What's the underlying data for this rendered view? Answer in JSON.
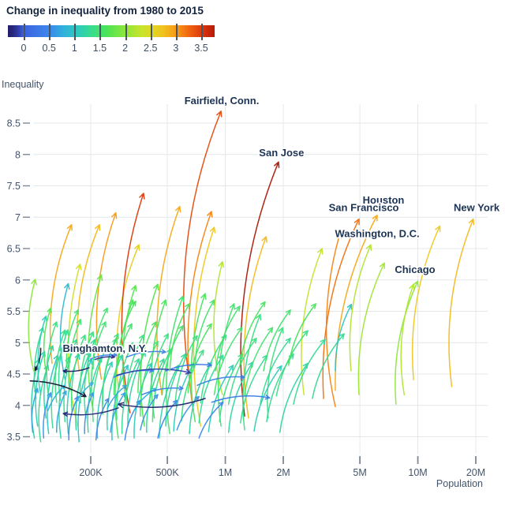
{
  "header": {
    "title": "Change in inequality from 1980 to 2015"
  },
  "legend": {
    "min": -0.31,
    "max": 3.76,
    "ticks": [
      0,
      0.5,
      1,
      1.5,
      2,
      2.5,
      3,
      3.5
    ],
    "colormap": [
      [
        -0.7,
        "#0c0a24"
      ],
      [
        -0.4,
        "#1c1750"
      ],
      [
        -0.15,
        "#2b2d8f"
      ],
      [
        0,
        "#3b63e0"
      ],
      [
        0.5,
        "#3d87ea"
      ],
      [
        0.8,
        "#30b2dc"
      ],
      [
        1.05,
        "#2dc9bf"
      ],
      [
        1.35,
        "#38dd8a"
      ],
      [
        1.65,
        "#4de455"
      ],
      [
        2.0,
        "#8ee73a"
      ],
      [
        2.35,
        "#cde32b"
      ],
      [
        2.7,
        "#efc91f"
      ],
      [
        3.0,
        "#f89b17"
      ],
      [
        3.3,
        "#ee5c0f"
      ],
      [
        3.6,
        "#d22a0a"
      ],
      [
        3.85,
        "#a21408"
      ],
      [
        4.2,
        "#8c1005"
      ]
    ]
  },
  "axes": {
    "y": {
      "title": "Inequality",
      "ticks": [
        3.5,
        4,
        4.5,
        5,
        5.5,
        6,
        6.5,
        7,
        7.5,
        8,
        8.5
      ]
    },
    "x": {
      "title": "Population",
      "scale": "log",
      "ticks": [
        {
          "v": 200000,
          "label": "200K"
        },
        {
          "v": 500000,
          "label": "500K"
        },
        {
          "v": 1000000,
          "label": "1M"
        },
        {
          "v": 2000000,
          "label": "2M"
        },
        {
          "v": 5000000,
          "label": "5M"
        },
        {
          "v": 10000000,
          "label": "10M"
        },
        {
          "v": 20000000,
          "label": "20M"
        }
      ]
    }
  },
  "chart_data": {
    "type": "arrow-connected-scatter",
    "title": "Change in inequality from 1980 to 2015",
    "x": "population (log scale)",
    "y": "inequality",
    "color": "change in inequality, 1980 to 2015",
    "arrow_format": [
      "pop_1980",
      "inequality_1980",
      "pop_2015",
      "inequality_2015",
      "change"
    ],
    "labeled_cities": [
      {
        "name": "Fairfield, Conn.",
        "pop": 958000,
        "ineq": 8.85
      },
      {
        "name": "San Jose",
        "pop": 1960000,
        "ineq": 8.02
      },
      {
        "name": "Houston",
        "pop": 6630000,
        "ineq": 7.27
      },
      {
        "name": "San Francisco",
        "pop": 5240000,
        "ineq": 7.15
      },
      {
        "name": "Washington, D.C.",
        "pop": 6150000,
        "ineq": 6.73
      },
      {
        "name": "New York",
        "pop": 20200000,
        "ineq": 7.15
      },
      {
        "name": "Chicago",
        "pop": 9670000,
        "ineq": 6.16
      },
      {
        "name": "Binghamton, N.Y.",
        "pop": 237000,
        "ineq": 4.9
      }
    ],
    "arrows": [
      [
        126000,
        4.67,
        159000,
        6.88,
        2.9
      ],
      [
        174000,
        4.55,
        222000,
        6.88,
        2.8
      ],
      [
        227000,
        4.42,
        270000,
        7.07,
        3.0
      ],
      [
        278000,
        4.3,
        356000,
        6.56,
        2.6
      ],
      [
        320000,
        3.88,
        376000,
        7.38,
        3.5
      ],
      [
        468000,
        4.17,
        580000,
        7.17,
        2.9
      ],
      [
        682000,
        3.92,
        847000,
        7.09,
        3.1
      ],
      [
        640000,
        4.55,
        950000,
        8.69,
        3.4
      ],
      [
        745000,
        3.67,
        876000,
        6.84,
        2.7
      ],
      [
        1320000,
        3.8,
        1630000,
        6.69,
        2.8
      ],
      [
        1260000,
        3.83,
        1890000,
        7.88,
        3.8
      ],
      [
        3730000,
        3.98,
        3950000,
        6.75,
        3.1
      ],
      [
        3240000,
        4.11,
        4950000,
        6.97,
        3.2
      ],
      [
        3730000,
        4.24,
        6150000,
        7.03,
        2.9
      ],
      [
        15000000,
        4.3,
        19400000,
        6.97,
        2.8
      ],
      [
        9500000,
        4.41,
        13000000,
        6.86,
        2.7
      ],
      [
        7700000,
        4.02,
        10000000,
        5.98,
        2.0
      ],
      [
        8500000,
        4.17,
        9500000,
        5.93,
        2.2
      ],
      [
        4500000,
        4.55,
        5700000,
        6.56,
        2.2
      ],
      [
        4950000,
        4.17,
        6700000,
        6.27,
        2.1
      ],
      [
        2560000,
        4.17,
        3180000,
        6.5,
        2.3
      ],
      [
        101000,
        4.55,
        103000,
        6.01,
        2.0
      ],
      [
        171000,
        3.67,
        176000,
        6.25,
        2.4
      ],
      [
        147000,
        4.42,
        153000,
        5.94,
        0.9
      ],
      [
        278000,
        3.48,
        331000,
        5.68,
        1.6
      ],
      [
        380000,
        3.67,
        446000,
        5.93,
        1.7
      ],
      [
        515000,
        3.55,
        603000,
        5.74,
        1.5
      ],
      [
        697000,
        3.74,
        786000,
        5.78,
        1.6
      ],
      [
        950000,
        3.67,
        1110000,
        5.62,
        1.5
      ],
      [
        1260000,
        3.61,
        1520000,
        5.45,
        1.4
      ],
      [
        1670000,
        3.8,
        1990000,
        5.24,
        1.4
      ],
      [
        966000,
        4.17,
        966000,
        6.29,
        2.2
      ],
      [
        206000,
        3.92,
        227000,
        6.08,
        1.8
      ],
      [
        306000,
        4.05,
        342000,
        5.91,
        1.7
      ],
      [
        428000,
        3.8,
        490000,
        5.68,
        1.6
      ],
      [
        102000,
        3.48,
        108000,
        4.74,
        1.2
      ],
      [
        106000,
        3.67,
        115000,
        4.86,
        1.1
      ],
      [
        110000,
        3.42,
        120000,
        4.64,
        1.3
      ],
      [
        117000,
        3.8,
        127000,
        4.95,
        1.2
      ],
      [
        121000,
        3.55,
        135000,
        4.8,
        1.0
      ],
      [
        127000,
        3.64,
        144000,
        4.93,
        1.3
      ],
      [
        133000,
        4.05,
        147000,
        5.2,
        1.4
      ],
      [
        140000,
        3.48,
        155000,
        4.77,
        1.2
      ],
      [
        147000,
        3.74,
        169000,
        5.05,
        1.3
      ],
      [
        153000,
        3.55,
        174000,
        4.82,
        1.1
      ],
      [
        160000,
        3.89,
        187000,
        5.12,
        1.4
      ],
      [
        168000,
        3.61,
        199000,
        4.86,
        1.2
      ],
      [
        174000,
        3.42,
        202000,
        4.74,
        1.0
      ],
      [
        189000,
        3.8,
        210000,
        5.05,
        1.3
      ],
      [
        194000,
        3.57,
        227000,
        4.77,
        1.2
      ],
      [
        206000,
        3.74,
        241000,
        4.93,
        1.4
      ],
      [
        217000,
        3.48,
        258000,
        4.69,
        1.1
      ],
      [
        231000,
        3.86,
        273000,
        5.07,
        1.5
      ],
      [
        244000,
        3.61,
        291000,
        4.8,
        1.2
      ],
      [
        258000,
        3.45,
        312000,
        4.64,
        1.0
      ],
      [
        273000,
        3.77,
        331000,
        5.0,
        1.4
      ],
      [
        291000,
        3.55,
        356000,
        4.74,
        1.3
      ],
      [
        312000,
        3.67,
        384000,
        4.86,
        1.2
      ],
      [
        336000,
        3.48,
        414000,
        4.67,
        1.1
      ],
      [
        362000,
        3.83,
        446000,
        5.02,
        1.5
      ],
      [
        390000,
        3.57,
        480000,
        4.74,
        1.3
      ],
      [
        419000,
        3.74,
        524000,
        4.9,
        1.4
      ],
      [
        454000,
        3.48,
        572000,
        4.64,
        1.2
      ],
      [
        490000,
        3.67,
        620000,
        4.82,
        1.3
      ],
      [
        539000,
        3.59,
        687000,
        4.67,
        1.1
      ],
      [
        592000,
        3.75,
        770000,
        4.88,
        1.4
      ],
      [
        651000,
        3.55,
        847000,
        4.69,
        1.2
      ],
      [
        730000,
        3.72,
        974000,
        4.8,
        1.3
      ],
      [
        818000,
        3.58,
        1100000,
        4.64,
        1.1
      ],
      [
        934000,
        3.74,
        1230000,
        4.82,
        1.4
      ],
      [
        1040000,
        3.57,
        1390000,
        4.69,
        1.2
      ],
      [
        1200000,
        3.72,
        1650000,
        4.8,
        1.3
      ],
      [
        1410000,
        3.59,
        1960000,
        4.63,
        1.1
      ],
      [
        1640000,
        3.74,
        2260000,
        4.82,
        1.3
      ],
      [
        1920000,
        3.57,
        2680000,
        4.67,
        1.2
      ],
      [
        104000,
        4.11,
        113000,
        5.24,
        1.3
      ],
      [
        120000,
        4.2,
        133000,
        5.33,
        1.4
      ],
      [
        139000,
        4.08,
        152000,
        5.2,
        1.3
      ],
      [
        155000,
        4.23,
        177000,
        5.37,
        1.5
      ],
      [
        177000,
        4.04,
        206000,
        5.17,
        1.4
      ],
      [
        202000,
        4.2,
        239000,
        5.33,
        1.5
      ],
      [
        231000,
        4.02,
        278000,
        5.14,
        1.4
      ],
      [
        264000,
        4.17,
        327000,
        5.3,
        1.5
      ],
      [
        306000,
        4.02,
        376000,
        5.12,
        1.4
      ],
      [
        352000,
        4.2,
        437000,
        5.33,
        1.6
      ],
      [
        405000,
        4.04,
        505000,
        5.14,
        1.4
      ],
      [
        470000,
        4.17,
        603000,
        5.27,
        1.5
      ],
      [
        549000,
        4.02,
        715000,
        5.11,
        1.4
      ],
      [
        640000,
        4.2,
        847000,
        5.3,
        1.6
      ],
      [
        745000,
        4.04,
        1010000,
        5.12,
        1.4
      ],
      [
        876000,
        4.17,
        1220000,
        5.24,
        1.5
      ],
      [
        1040000,
        4.02,
        1450000,
        5.07,
        1.4
      ],
      [
        1260000,
        4.17,
        1760000,
        5.24,
        1.5
      ],
      [
        1520000,
        4.02,
        2180000,
        5.07,
        1.3
      ],
      [
        1840000,
        4.15,
        2680000,
        5.19,
        1.4
      ],
      [
        2260000,
        4.02,
        3300000,
        5.05,
        1.3
      ],
      [
        2830000,
        4.11,
        4140000,
        5.14,
        1.3
      ],
      [
        3730000,
        4.55,
        4520000,
        5.61,
        1.0
      ],
      [
        100000,
        3.57,
        106000,
        4.27,
        0.7
      ],
      [
        114000,
        3.48,
        124000,
        4.2,
        0.6
      ],
      [
        133000,
        3.57,
        149000,
        4.23,
        0.7
      ],
      [
        154000,
        3.45,
        172000,
        4.14,
        0.5
      ],
      [
        186000,
        3.55,
        206000,
        4.2,
        0.6
      ],
      [
        213000,
        3.45,
        248000,
        4.11,
        0.5
      ],
      [
        253000,
        3.57,
        301000,
        4.2,
        0.7
      ],
      [
        301000,
        3.45,
        362000,
        4.08,
        0.5
      ],
      [
        362000,
        3.61,
        446000,
        4.17,
        0.6
      ],
      [
        446000,
        3.48,
        561000,
        4.08,
        0.5
      ],
      [
        561000,
        3.61,
        730000,
        4.14,
        0.6
      ],
      [
        730000,
        3.48,
        974000,
        4.05,
        0.5
      ],
      [
        120000,
        3.92,
        147000,
        4.32,
        0.8
      ],
      [
        168000,
        4.05,
        206000,
        4.36,
        0.8
      ],
      [
        244000,
        3.95,
        306000,
        4.32,
        0.7
      ],
      [
        336000,
        3.92,
        437000,
        4.27,
        0.8
      ],
      [
        200000,
        4.74,
        273000,
        4.8,
        0.4
      ],
      [
        264000,
        4.45,
        423000,
        4.55,
        0.35
      ],
      [
        369000,
        4.17,
        603000,
        4.27,
        0.4
      ],
      [
        490000,
        4.55,
        847000,
        4.64,
        0.3
      ],
      [
        715000,
        4.32,
        1260000,
        4.45,
        0.4
      ],
      [
        306000,
        4.77,
        490000,
        4.85,
        0.45
      ],
      [
        850000,
        4.05,
        1700000,
        4.12,
        0.35
      ],
      [
        210000,
        4.73,
        266000,
        4.77,
        -0.15
      ],
      [
        273000,
        4.48,
        660000,
        4.52,
        -0.1
      ],
      [
        278000,
        3.96,
        144000,
        3.87,
        -0.25
      ],
      [
        786000,
        4.11,
        278000,
        4.02,
        -0.3
      ],
      [
        97000,
        4.39,
        189000,
        4.14,
        -0.6
      ],
      [
        196000,
        4.6,
        144000,
        4.55,
        -0.35
      ],
      [
        110000,
        4.91,
        103000,
        4.56,
        -0.6
      ],
      [
        110000,
        4.17,
        117000,
        5.42,
        1.1
      ],
      [
        515000,
        4.55,
        651000,
        5.62,
        1.6
      ],
      [
        697000,
        4.64,
        876000,
        5.68,
        1.5
      ],
      [
        890000,
        4.55,
        1190000,
        5.58,
        1.5
      ],
      [
        1190000,
        4.64,
        1610000,
        5.65,
        1.6
      ],
      [
        1580000,
        4.55,
        2180000,
        5.52,
        1.5
      ],
      [
        2130000,
        4.64,
        2950000,
        5.62,
        1.6
      ],
      [
        278000,
        4.64,
        342000,
        5.66,
        1.6
      ],
      [
        206000,
        4.58,
        244000,
        5.55,
        1.5
      ],
      [
        150000,
        4.61,
        172000,
        5.52,
        1.5
      ],
      [
        117000,
        4.55,
        124000,
        5.55,
        1.7
      ]
    ]
  }
}
